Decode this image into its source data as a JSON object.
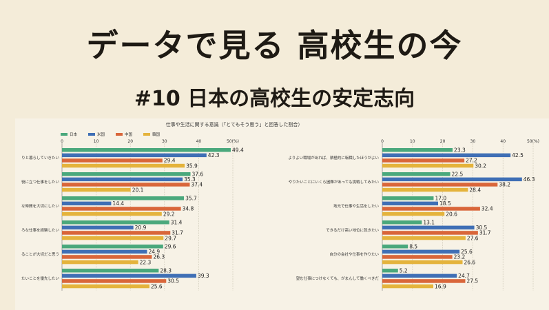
{
  "title": "データで見る 高校生の今",
  "subtitle": "#10 日本の高校生の安定志向",
  "chart_data": {
    "type": "bar",
    "orientation": "horizontal",
    "title": "仕事や生活に関する意識（「とてもそう思う」と回答した割合）",
    "legend": [
      "日本",
      "米国",
      "中国",
      "韓国"
    ],
    "legend_position": "top-left",
    "colors": {
      "日本": "#4aa87c",
      "米国": "#3f6fb5",
      "中国": "#d9663a",
      "韓国": "#e4b33c"
    },
    "axis_ticks": [
      "0",
      "10",
      "20",
      "30",
      "40",
      "50(%)"
    ],
    "xlim": [
      0,
      50
    ],
    "panels": [
      {
        "categories": [
          "りと暮らしていきたい",
          "役に立つ仕事をしたい",
          "な時間を大切にしたい",
          "ろな仕事を経験したい",
          "ることが大切だと思う",
          "たいことを優先したい"
        ],
        "series": [
          {
            "name": "日本",
            "values": [
              49.4,
              37.6,
              35.7,
              31.4,
              29.6,
              28.3
            ]
          },
          {
            "name": "米国",
            "values": [
              42.3,
              35.3,
              14.4,
              20.9,
              24.9,
              39.3
            ]
          },
          {
            "name": "中国",
            "values": [
              29.4,
              37.4,
              34.8,
              31.7,
              26.3,
              30.5
            ]
          },
          {
            "name": "韓国",
            "values": [
              35.9,
              20.1,
              29.2,
              29.7,
              22.3,
              25.6
            ]
          }
        ]
      },
      {
        "categories": [
          "よりよい職場があれば、積極的に転職したほうがよい",
          "やりたいことにいくら困難があっても挑戦してみたい",
          "地元で仕事や生活をしたい",
          "できるだけ高い地位に就きたい",
          "自分の会社や仕事を作りたい",
          "望む仕事につけなくても、がまんして働くべきだ"
        ],
        "series": [
          {
            "name": "日本",
            "values": [
              23.3,
              22.5,
              17.0,
              13.1,
              8.5,
              5.2
            ]
          },
          {
            "name": "米国",
            "values": [
              42.5,
              46.3,
              18.5,
              30.5,
              25.6,
              24.7
            ]
          },
          {
            "name": "中国",
            "values": [
              27.2,
              38.2,
              32.4,
              31.7,
              23.2,
              27.5
            ]
          },
          {
            "name": "韓国",
            "values": [
              30.2,
              28.4,
              20.6,
              27.6,
              26.6,
              16.9
            ]
          }
        ]
      }
    ]
  }
}
